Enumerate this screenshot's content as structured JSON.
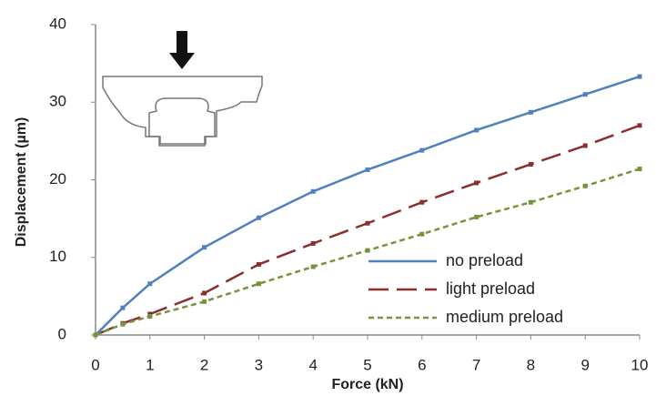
{
  "chart_data": {
    "type": "line",
    "x_label": "Force (kN)",
    "y_label": "Displacement  (µm)",
    "x": [
      0,
      0.5,
      1,
      2,
      3,
      4,
      5,
      6,
      7,
      8,
      9,
      10
    ],
    "series": [
      {
        "name": "no preload",
        "color": "#4f81bd",
        "dash": "none",
        "values": [
          0,
          3.5,
          6.6,
          11.3,
          15.1,
          18.5,
          21.3,
          23.8,
          26.4,
          28.7,
          31,
          33.3
        ]
      },
      {
        "name": "light preload",
        "color": "#8b2e2e",
        "dash": "22 9",
        "values": [
          0,
          1.5,
          2.7,
          5.4,
          9.1,
          11.8,
          14.4,
          17.1,
          19.6,
          22,
          24.4,
          27
        ]
      },
      {
        "name": "medium preload",
        "color": "#77933c",
        "dash": "6 4",
        "values": [
          0,
          1.4,
          2.4,
          4.3,
          6.6,
          8.8,
          10.9,
          13,
          15.2,
          17.1,
          19.2,
          21.4
        ]
      }
    ],
    "xlim": [
      0,
      10
    ],
    "ylim": [
      0,
      40
    ],
    "xticks": [
      0,
      1,
      2,
      3,
      4,
      5,
      6,
      7,
      8,
      9,
      10
    ],
    "yticks": [
      0,
      10,
      20,
      30,
      40
    ]
  }
}
